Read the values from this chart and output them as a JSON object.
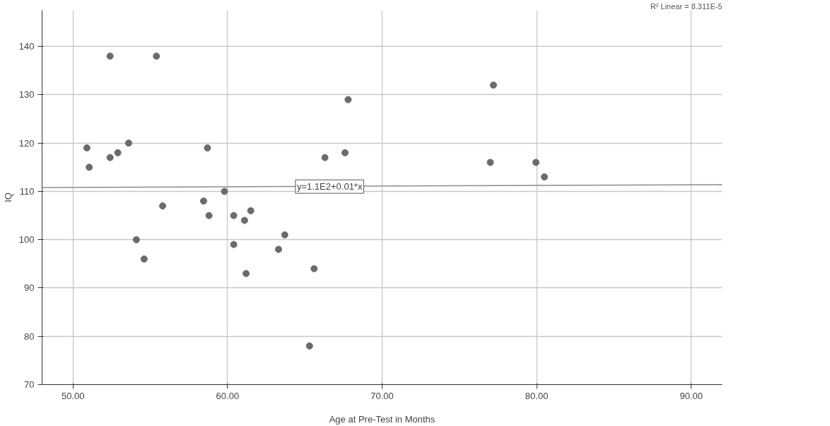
{
  "chart_data": {
    "type": "scatter",
    "xlabel": "Age at Pre-Test in Months",
    "ylabel": "IQ",
    "xlim": [
      48,
      92
    ],
    "ylim": [
      70,
      147.5
    ],
    "xticks": [
      {
        "value": 50,
        "label": "50.00"
      },
      {
        "value": 60,
        "label": "60.00"
      },
      {
        "value": 70,
        "label": "70.00"
      },
      {
        "value": 80,
        "label": "80.00"
      },
      {
        "value": 90,
        "label": "90.00"
      }
    ],
    "yticks": [
      70,
      80,
      90,
      100,
      110,
      120,
      130,
      140
    ],
    "grid": true,
    "series": [
      {
        "marker": "circle",
        "color": "#6b6b6b",
        "x": [
          50.9,
          51.05,
          52.4,
          52.4,
          52.9,
          53.6,
          54.1,
          54.6,
          55.4,
          55.8,
          58.45,
          58.7,
          58.8,
          59.8,
          60.4,
          60.4,
          61.1,
          61.2,
          61.5,
          63.3,
          63.7,
          65.3,
          65.6,
          66.3,
          67.6,
          67.8,
          77.0,
          77.2,
          79.95,
          80.5
        ],
        "values": [
          119,
          115,
          138,
          117,
          118,
          120,
          100,
          96,
          138,
          107,
          108,
          119,
          105,
          110,
          105,
          99,
          104,
          93,
          106,
          98,
          101,
          78,
          94,
          117,
          118,
          129,
          116,
          132,
          116,
          113
        ]
      },
      {
        "type": "line",
        "color": "#8c8c8c",
        "x": [
          48,
          92
        ],
        "values": [
          110.8,
          111.4
        ]
      }
    ],
    "annotations": [
      {
        "text": "y=1.1E2+0.01*x",
        "x": 66.6,
        "y": 111
      },
      "R² Linear = 8.311E-5"
    ]
  }
}
